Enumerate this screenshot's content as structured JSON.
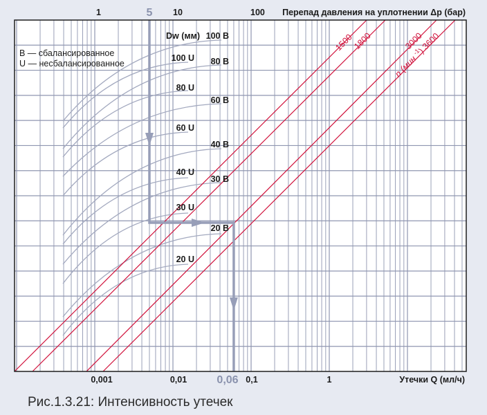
{
  "caption": "Рис.1.3.21: Интенсивность утечек",
  "colors": {
    "grid": "#8f96b0",
    "speed_lines": "#d0103a",
    "curves": "#a3a9bf",
    "example_path": "#979eb8",
    "background": "#e7eaf2"
  },
  "legend": {
    "balanced": "B — сбалансированное",
    "unbalanced": "U — несбалансированное"
  },
  "chart_data": {
    "type": "line",
    "top_axis": {
      "label": "Перепад давления на уплотнении Δp (бар)",
      "scale": "log",
      "ticks": [
        "1",
        "10",
        "100"
      ]
    },
    "bottom_axis": {
      "label": "Утечки Q (мл/ч)",
      "scale": "log",
      "ticks": [
        "0,001",
        "0,01",
        "0,1",
        "1"
      ]
    },
    "grid": true,
    "speed_lines": {
      "unit_prefix": "n (мин",
      "unit_exp": "-1",
      "unit_suffix": ")",
      "values": [
        "1500",
        "1800",
        "3000",
        "3600"
      ]
    },
    "diameter_curves": {
      "header": "Dw (мм)",
      "labels": [
        "100 B",
        "100 U",
        "80 B",
        "80 U",
        "60 B",
        "60 U",
        "40 B",
        "40 U",
        "30 B",
        "30 U",
        "20 B",
        "20 U"
      ]
    },
    "example": {
      "dp": "5",
      "q": "0,06",
      "dp_value": 5,
      "q_value": 0.06,
      "curve": "30 U",
      "speed": "1800"
    }
  }
}
